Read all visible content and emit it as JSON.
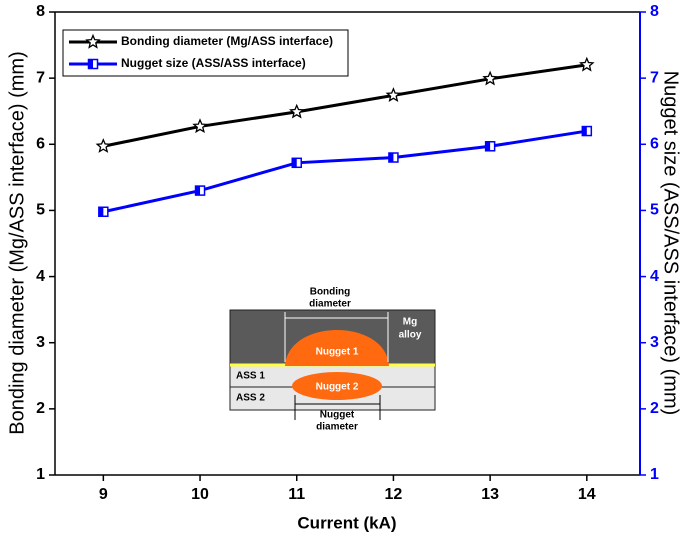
{
  "chart_data": {
    "type": "line",
    "x_label": "Current (kA)",
    "y_label": "Bonding diameter (Mg/ASS interface) (mm)",
    "y2_label": "Nugget size (ASS/ASS interface) (mm)",
    "x": [
      9,
      10,
      11,
      12,
      13,
      14
    ],
    "xlim": [
      8.5,
      14.55
    ],
    "xticks": [
      9,
      10,
      11,
      12,
      13,
      14
    ],
    "ylim": [
      1,
      8
    ],
    "yticks": [
      1,
      2,
      3,
      4,
      5,
      6,
      7,
      8
    ],
    "y2lim": [
      1,
      8
    ],
    "y2ticks": [
      1,
      2,
      3,
      4,
      5,
      6,
      7,
      8
    ],
    "legend": "upper left",
    "series": [
      {
        "name": "Bonding diameter (Mg/ASS interface)",
        "color": "#000000",
        "marker": "star",
        "values": [
          5.97,
          6.27,
          6.49,
          6.74,
          6.99,
          7.2
        ]
      },
      {
        "name": "Nugget size (ASS/ASS interface)",
        "color": "#0000ff",
        "marker": "square",
        "axis": "y2",
        "values": [
          4.98,
          5.3,
          5.72,
          5.8,
          5.97,
          6.2
        ]
      }
    ]
  },
  "inset": {
    "bonding": [
      "Bonding",
      "diameter"
    ],
    "mg": [
      "Mg",
      "alloy"
    ],
    "nugget1": "Nugget 1",
    "nugget2": "Nugget 2",
    "ass1": "ASS 1",
    "ass2": "ASS 2",
    "nugget_diameter": [
      "Nugget",
      "diameter"
    ]
  }
}
